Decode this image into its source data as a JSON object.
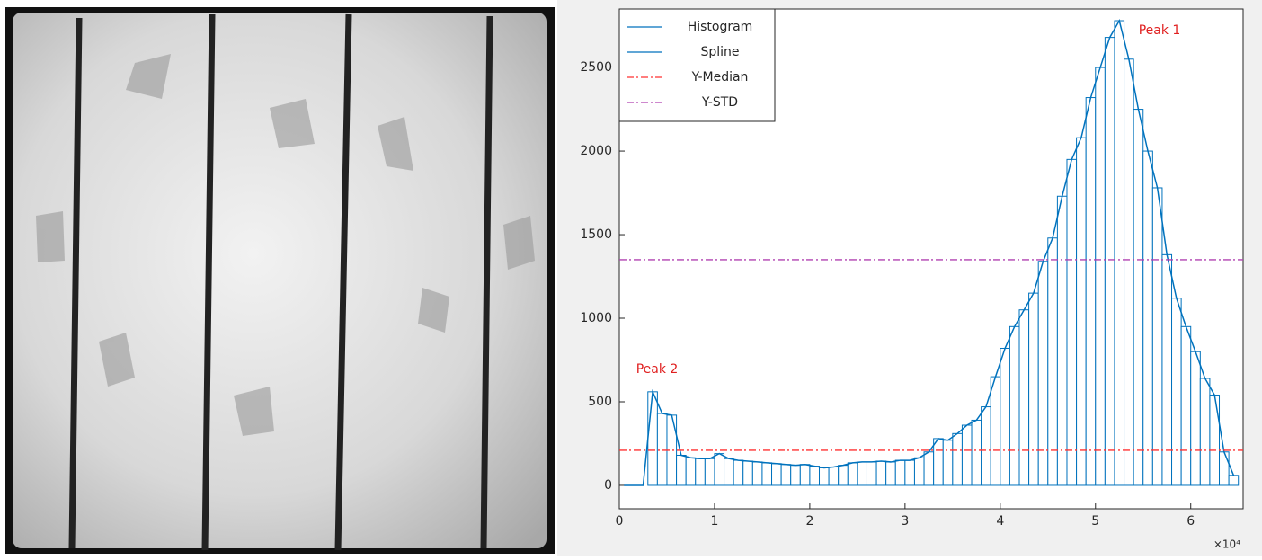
{
  "chart_data": {
    "type": "histogram",
    "xlim": [
      0,
      65500
    ],
    "ylim": [
      -140,
      2850
    ],
    "xticks": [
      {
        "value": 0,
        "label": "0"
      },
      {
        "value": 10000,
        "label": "1"
      },
      {
        "value": 20000,
        "label": "2"
      },
      {
        "value": 30000,
        "label": "3"
      },
      {
        "value": 40000,
        "label": "4"
      },
      {
        "value": 50000,
        "label": "5"
      },
      {
        "value": 60000,
        "label": "6"
      }
    ],
    "yticks": [
      0,
      500,
      1000,
      1500,
      2000,
      2500
    ],
    "x_exponent_label": "×10⁴",
    "legend": "upper left",
    "annotations": [
      "Peak 1",
      "Peak 2"
    ],
    "series": [
      {
        "name": "Histogram",
        "color": "#0072bd",
        "bins": [
          0,
          1000,
          2000,
          3000,
          4000,
          5000,
          6000,
          7000,
          8000,
          9000,
          10000,
          11000,
          12000,
          13000,
          14000,
          15000,
          16000,
          17000,
          18000,
          19000,
          20000,
          21000,
          22000,
          23000,
          24000,
          25000,
          26000,
          27000,
          28000,
          29000,
          30000,
          31000,
          32000,
          33000,
          34000,
          35000,
          36000,
          37000,
          38000,
          39000,
          40000,
          41000,
          42000,
          43000,
          44000,
          45000,
          46000,
          47000,
          48000,
          49000,
          50000,
          51000,
          52000,
          53000,
          54000,
          55000,
          56000,
          57000,
          58000,
          59000,
          60000,
          61000,
          62000,
          63000,
          64000,
          65000
        ],
        "values": [
          0,
          0,
          0,
          560,
          430,
          420,
          180,
          165,
          160,
          160,
          190,
          160,
          150,
          145,
          140,
          135,
          130,
          125,
          120,
          125,
          115,
          105,
          110,
          120,
          135,
          140,
          140,
          145,
          140,
          150,
          150,
          165,
          200,
          280,
          270,
          310,
          360,
          390,
          470,
          650,
          820,
          950,
          1050,
          1150,
          1340,
          1480,
          1730,
          1950,
          2080,
          2320,
          2500,
          2680,
          2780,
          2550,
          2250,
          2000,
          1780,
          1380,
          1120,
          950,
          800,
          640,
          540,
          200,
          60
        ]
      },
      {
        "name": "Spline",
        "color": "#0072bd",
        "x": [
          500,
          1500,
          2500,
          3500,
          4500,
          5500,
          6500,
          7500,
          8500,
          9500,
          10500,
          11500,
          12500,
          13500,
          14500,
          15500,
          16500,
          17500,
          18500,
          19500,
          20500,
          21500,
          22500,
          23500,
          24500,
          25500,
          26500,
          27500,
          28500,
          29500,
          30500,
          31500,
          32500,
          33500,
          34500,
          35500,
          36500,
          37500,
          38500,
          39500,
          40500,
          41500,
          42500,
          43500,
          44500,
          45500,
          46500,
          47500,
          48500,
          49500,
          50500,
          51500,
          52500,
          53500,
          54500,
          55500,
          56500,
          57500,
          58500,
          59500,
          60500,
          61500,
          62500,
          63500,
          64500
        ],
        "values": [
          0,
          0,
          0,
          560,
          430,
          420,
          180,
          165,
          160,
          160,
          190,
          160,
          150,
          145,
          140,
          135,
          130,
          125,
          120,
          125,
          115,
          105,
          110,
          120,
          135,
          140,
          140,
          145,
          140,
          150,
          150,
          165,
          200,
          280,
          270,
          310,
          360,
          390,
          470,
          650,
          820,
          950,
          1050,
          1150,
          1340,
          1480,
          1730,
          1950,
          2080,
          2320,
          2500,
          2680,
          2780,
          2550,
          2250,
          2000,
          1780,
          1380,
          1120,
          950,
          800,
          640,
          540,
          200,
          60
        ]
      },
      {
        "name": "Y-Median",
        "color": "#ff3030",
        "value": 210
      },
      {
        "name": "Y-STD",
        "color": "#b040b0",
        "value": 1350
      }
    ]
  }
}
